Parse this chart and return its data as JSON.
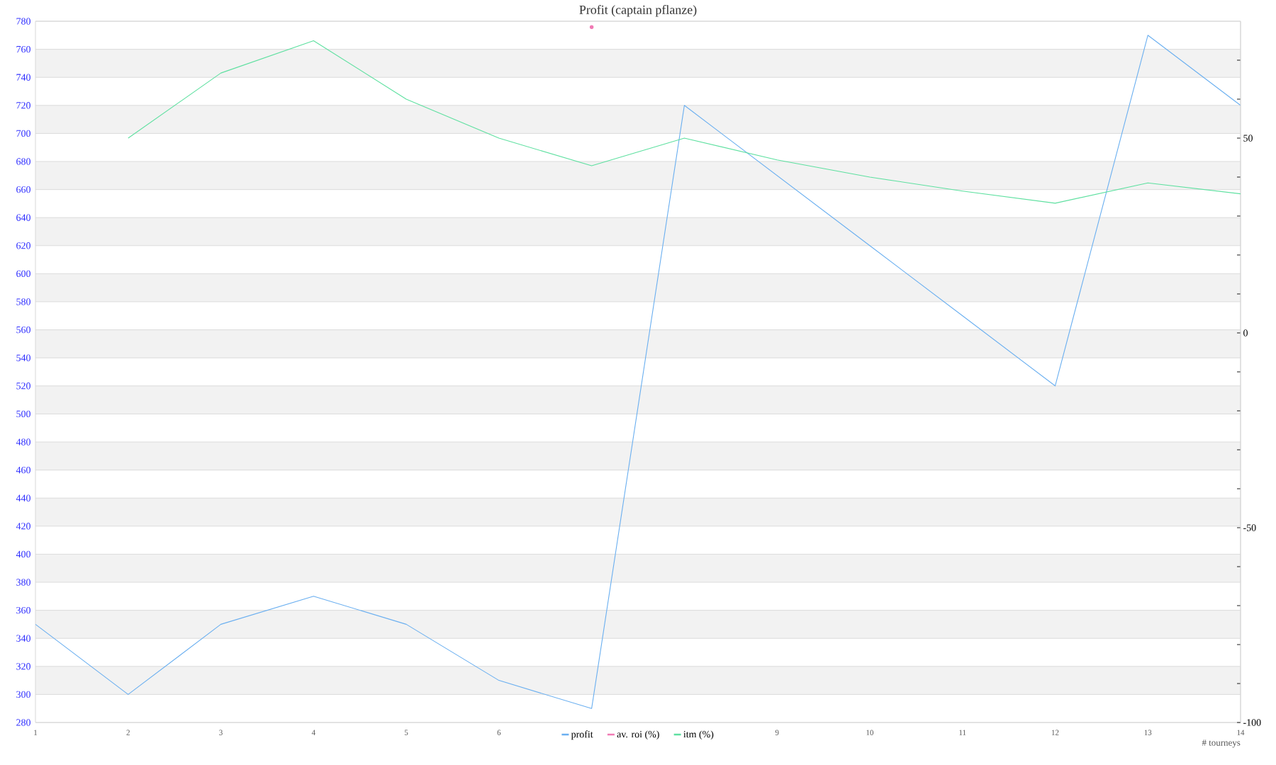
{
  "chart_data": {
    "type": "line",
    "title": "Profit (captain pflanze)",
    "xlabel": "# tourneys",
    "x": [
      1,
      2,
      3,
      4,
      5,
      6,
      7,
      8,
      9,
      10,
      11,
      12,
      13,
      14
    ],
    "xlim": [
      1,
      14
    ],
    "xticks": [
      1,
      2,
      3,
      4,
      5,
      6,
      9,
      10,
      11,
      12,
      13,
      14
    ],
    "ylim": [
      280,
      780
    ],
    "yticks": [
      280,
      300,
      320,
      340,
      360,
      380,
      400,
      420,
      440,
      460,
      480,
      500,
      520,
      540,
      560,
      580,
      600,
      620,
      640,
      660,
      680,
      700,
      720,
      740,
      760,
      780
    ],
    "y2lim": [
      -100,
      80
    ],
    "y2ticks": [
      -100,
      {
        "value": -90,
        "label": null
      },
      {
        "value": -80,
        "label": null
      },
      {
        "value": -70,
        "label": null
      },
      {
        "value": -60,
        "label": null
      },
      -50,
      {
        "value": -40,
        "label": null
      },
      {
        "value": -30,
        "label": null
      },
      {
        "value": -20,
        "label": null
      },
      {
        "value": -10,
        "label": null
      },
      0,
      {
        "value": 10,
        "label": null
      },
      {
        "value": 20,
        "label": null
      },
      {
        "value": 30,
        "label": null
      },
      {
        "value": 40,
        "label": null
      },
      50,
      {
        "value": 60,
        "label": null
      },
      {
        "value": 70,
        "label": null
      }
    ],
    "grid": "y",
    "legend": "bottom",
    "bands": [
      {
        "axis": "y",
        "from": 300,
        "to": 320,
        "color": "#f2f2f2"
      },
      {
        "axis": "y",
        "from": 340,
        "to": 360,
        "color": "#f2f2f2"
      },
      {
        "axis": "y",
        "from": 380,
        "to": 400,
        "color": "#f2f2f2"
      },
      {
        "axis": "y",
        "from": 420,
        "to": 440,
        "color": "#f2f2f2"
      },
      {
        "axis": "y",
        "from": 460,
        "to": 480,
        "color": "#f2f2f2"
      },
      {
        "axis": "y",
        "from": 500,
        "to": 520,
        "color": "#f2f2f2"
      },
      {
        "axis": "y",
        "from": 540,
        "to": 560,
        "color": "#f2f2f2"
      },
      {
        "axis": "y",
        "from": 580,
        "to": 600,
        "color": "#f2f2f2"
      },
      {
        "axis": "y",
        "from": 620,
        "to": 640,
        "color": "#f2f2f2"
      },
      {
        "axis": "y",
        "from": 660,
        "to": 680,
        "color": "#f2f2f2"
      },
      {
        "axis": "y",
        "from": 700,
        "to": 720,
        "color": "#f2f2f2"
      },
      {
        "axis": "y",
        "from": 740,
        "to": 760,
        "color": "#f2f2f2"
      }
    ],
    "series": [
      {
        "name": "profit",
        "color": "#6aaff0",
        "values": [
          350,
          300,
          350,
          370,
          350,
          310,
          290,
          720,
          670,
          620,
          570,
          520,
          770,
          720
        ]
      },
      {
        "name": "av. roi (%)",
        "color": "#f07ab4",
        "axis": "y2",
        "marker": "circle",
        "values": [
          null,
          null,
          null,
          null,
          null,
          null,
          78.5,
          null,
          null,
          null,
          null,
          null,
          null,
          null
        ]
      },
      {
        "name": "itm (%)",
        "color": "#5ee0a0",
        "axis": "y2",
        "values": [
          null,
          50,
          66.7,
          75,
          60,
          50,
          42.9,
          50,
          44.4,
          40,
          36.4,
          33.3,
          38.5,
          35.7
        ]
      }
    ]
  }
}
